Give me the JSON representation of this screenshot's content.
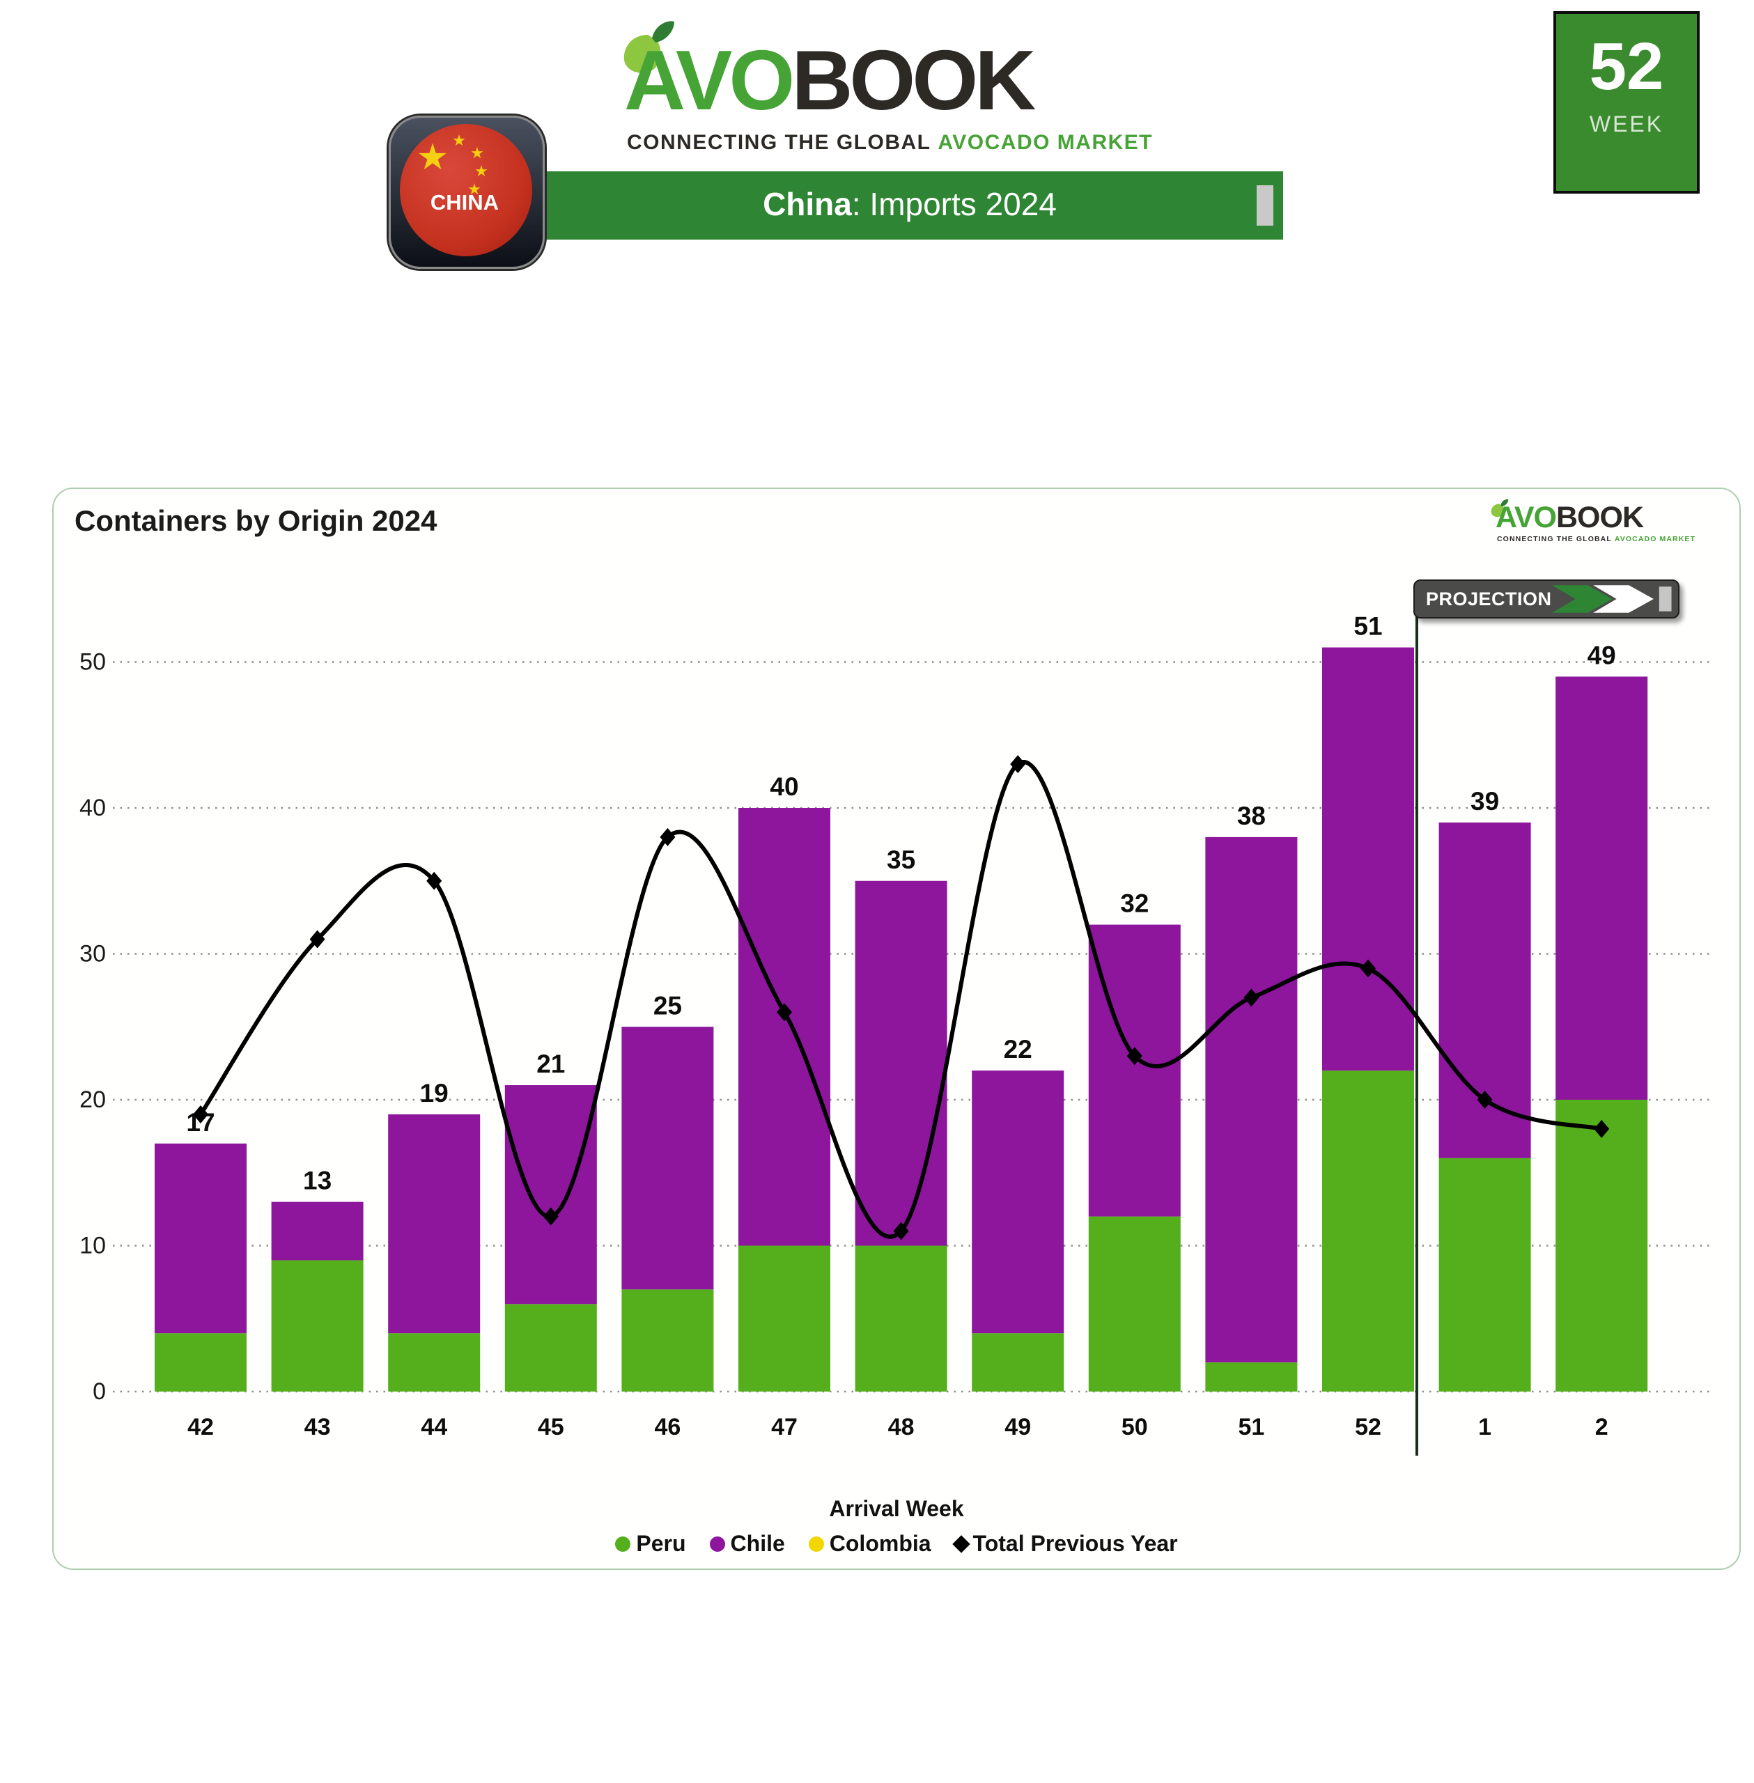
{
  "logo": {
    "avo": "AVO",
    "book": "BOOK",
    "tagline_dark": "CONNECTING THE GLOBAL",
    "tagline_green": "AVOCADO MARKET"
  },
  "header": {
    "country_badge": "CHINA",
    "banner": {
      "country": "China",
      "rest": ": Imports 2024"
    },
    "week_box": {
      "number": "52",
      "label": "WEEK"
    }
  },
  "card": {
    "title": "Containers by Origin 2024",
    "projection_label": "PROJECTION"
  },
  "chart_data": {
    "type": "bar",
    "subtype": "stacked-bars-with-line",
    "title": "Containers by Origin 2024",
    "xlabel": "Arrival Week",
    "ylabel": "",
    "ylim": [
      0,
      50
    ],
    "yticks": [
      0,
      10,
      20,
      30,
      40,
      50
    ],
    "grid": "dotted-horizontal",
    "legend_position": "bottom",
    "categories": [
      "42",
      "43",
      "44",
      "45",
      "46",
      "47",
      "48",
      "49",
      "50",
      "51",
      "52",
      "1",
      "2"
    ],
    "series": [
      {
        "name": "Peru",
        "color": "#55af1d",
        "values": [
          4,
          9,
          4,
          6,
          7,
          10,
          10,
          4,
          12,
          2,
          22,
          16,
          20
        ]
      },
      {
        "name": "Chile",
        "color": "#8d169d",
        "values": [
          13,
          4,
          15,
          15,
          18,
          30,
          25,
          18,
          20,
          36,
          29,
          23,
          29
        ]
      },
      {
        "name": "Colombia",
        "color": "#f2d600",
        "values": [
          0,
          0,
          0,
          0,
          0,
          0,
          0,
          0,
          0,
          0,
          0,
          0,
          0
        ]
      }
    ],
    "bar_total_labels": [
      17,
      13,
      19,
      21,
      25,
      40,
      35,
      22,
      32,
      38,
      51,
      39,
      49
    ],
    "line_series": {
      "name": "Total Previous Year",
      "color": "#000000",
      "marker": "diamond",
      "values": [
        19,
        31,
        35,
        12,
        38,
        26,
        11,
        43,
        23,
        27,
        29,
        20,
        18
      ]
    },
    "projection": {
      "label": "PROJECTION",
      "starts_after_category": "52"
    }
  },
  "colors": {
    "banner_green": "#2e8533",
    "box_green": "#3a8a2e",
    "logo_green": "#46a335",
    "logo_dark": "#2d2a26",
    "leaf_lime": "#8dc63f",
    "leaf_dark": "#2e7d32",
    "flag_red": "#c5311f",
    "star_yellow": "#f5d012"
  }
}
